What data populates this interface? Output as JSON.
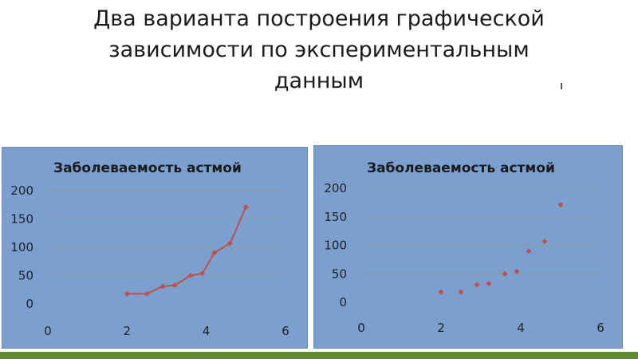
{
  "slide": {
    "title_lines": [
      "Два варианта построения графической",
      "зависимости по экспериментальным",
      "данным"
    ]
  },
  "colors": {
    "panel_background": "#7ba0cf",
    "panel_border": "#6a8fbe",
    "marker": "#c0504d",
    "bottom_bar": "#5f8a2d"
  },
  "chart_data": [
    {
      "type": "line",
      "title": "Заболеваемость астмой",
      "xlabel": "",
      "ylabel": "",
      "x": [
        2,
        2.5,
        2.9,
        3.2,
        3.6,
        3.9,
        4.2,
        4.6,
        5
      ],
      "y": [
        18,
        18,
        31,
        33,
        50,
        54,
        90,
        107,
        171
      ],
      "xlim": [
        0,
        6
      ],
      "ylim": [
        0,
        200
      ],
      "x_ticks": [
        "0",
        "2",
        "4",
        "6"
      ],
      "y_ticks": [
        "0",
        "50",
        "100",
        "150",
        "200"
      ],
      "grid": "horizontal",
      "legend": "none",
      "markers": "diamond"
    },
    {
      "type": "scatter",
      "title": "Заболеваемость астмой",
      "xlabel": "",
      "ylabel": "",
      "x": [
        2,
        2.5,
        2.9,
        3.2,
        3.6,
        3.9,
        4.2,
        4.6,
        5
      ],
      "y": [
        18,
        18,
        31,
        33,
        50,
        54,
        90,
        107,
        171
      ],
      "xlim": [
        0,
        6
      ],
      "ylim": [
        0,
        200
      ],
      "x_ticks": [
        "0",
        "2",
        "4",
        "6"
      ],
      "y_ticks": [
        "0",
        "50",
        "100",
        "150",
        "200"
      ],
      "grid": "horizontal",
      "legend": "none",
      "markers": "diamond"
    }
  ]
}
